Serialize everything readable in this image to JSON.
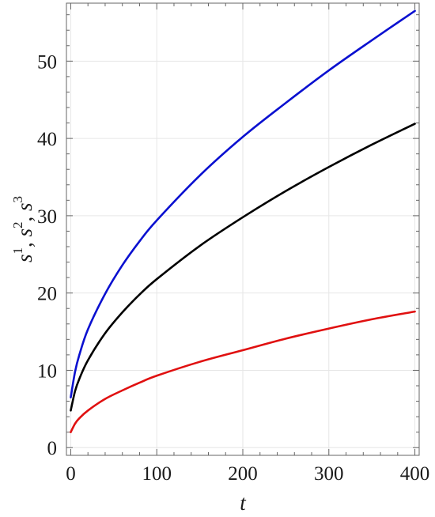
{
  "chart_data": {
    "type": "line",
    "xlabel": "t",
    "ylabel": {
      "parts": [
        {
          "base": "s",
          "sup": "1",
          "sep": ", "
        },
        {
          "base": "s",
          "sup": "2",
          "sep": ", "
        },
        {
          "base": "s",
          "sup": "3",
          "sep": ""
        }
      ]
    },
    "xlim": [
      -5,
      405
    ],
    "ylim": [
      -1,
      57.5
    ],
    "x_ticks": [
      0,
      100,
      200,
      300,
      400
    ],
    "y_ticks": [
      0,
      10,
      20,
      30,
      40,
      50
    ],
    "grid": true,
    "x": [
      0,
      5,
      10,
      20,
      40,
      60,
      80,
      100,
      150,
      200,
      250,
      300,
      350,
      400
    ],
    "series": [
      {
        "color": "#0a10d0",
        "values": [
          6.5,
          9.8,
          12.0,
          15.3,
          19.9,
          23.6,
          26.7,
          29.4,
          35.2,
          40.2,
          44.6,
          48.8,
          52.7,
          56.5
        ]
      },
      {
        "color": "#000000",
        "values": [
          4.8,
          7.3,
          8.9,
          11.3,
          14.8,
          17.5,
          19.8,
          21.8,
          26.1,
          29.8,
          33.2,
          36.3,
          39.2,
          41.9
        ]
      },
      {
        "color": "#e01010",
        "values": [
          2.0,
          3.1,
          3.8,
          4.8,
          6.3,
          7.4,
          8.4,
          9.3,
          11.1,
          12.6,
          14.1,
          15.4,
          16.6,
          17.6
        ]
      }
    ]
  }
}
